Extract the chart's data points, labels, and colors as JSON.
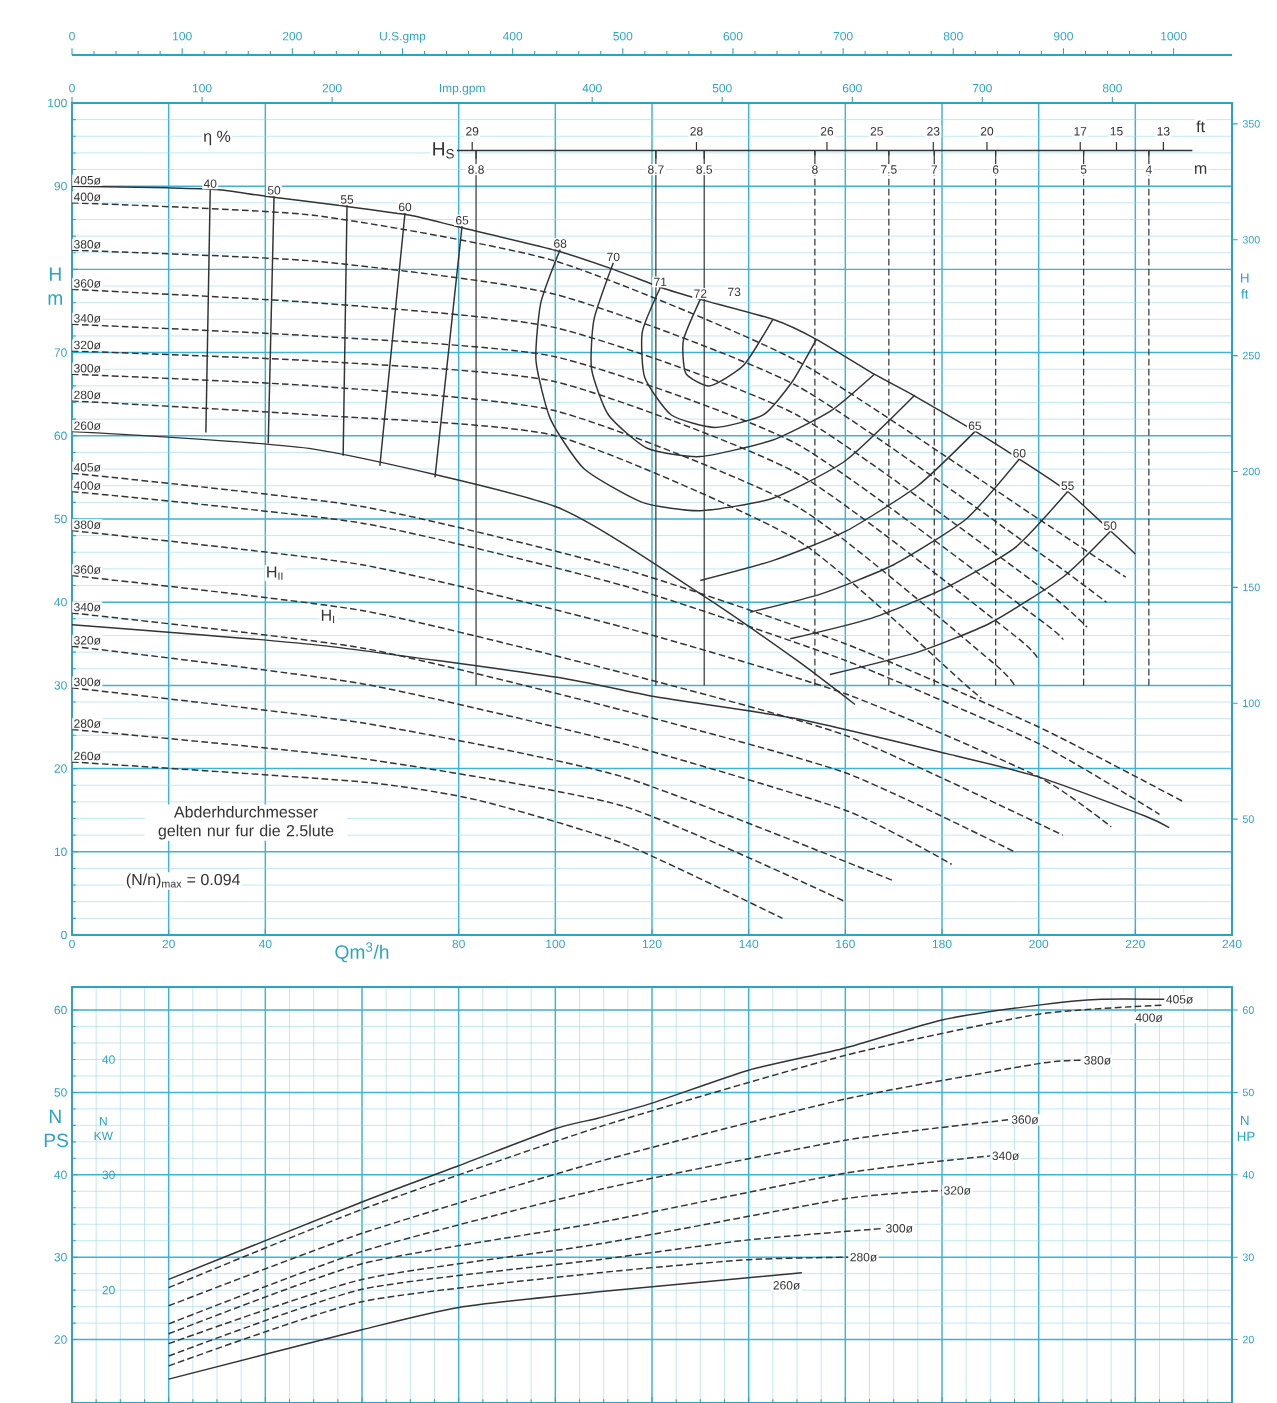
{
  "chart_data": [
    {
      "type": "other",
      "annotations": [
        "0",
        "100",
        "200",
        "U.S.gmp",
        "400",
        "500",
        "600",
        "700",
        "800",
        "900",
        "1000"
      ]
    },
    {
      "type": "line",
      "xlabel": "Qm$^{3}$/h",
      "ylabel": "H m",
      "y2label": "H ft",
      "x2label": "Imp.gpm",
      "xlim": [
        0,
        240
      ],
      "xticks": [
        0,
        20,
        40,
        80,
        100,
        120,
        140,
        160,
        180,
        200,
        220,
        240
      ],
      "ylim": [
        0,
        100
      ],
      "yticks": [
        0,
        10,
        20,
        30,
        40,
        50,
        60,
        70,
        {
          "value": 80,
          "label": null
        },
        90,
        100
      ],
      "y2lim": [
        0,
        359
      ],
      "y2ticks": [
        50,
        100,
        150,
        200,
        250,
        300,
        350
      ],
      "x2lim": [
        0,
        892
      ],
      "x2ticks": [
        0,
        100,
        200,
        400,
        500,
        600,
        700,
        800
      ],
      "grid": true,
      "series": [
        {
          "name": "405ø",
          "color": "#333333",
          "line_style": "solid",
          "x": [
            0,
            20,
            30,
            40,
            55,
            70,
            80,
            100,
            112,
            122,
            130,
            145,
            154,
            166,
            174,
            187,
            196,
            206,
            215,
            220
          ],
          "values": [
            90,
            89.8,
            89.6,
            88.8,
            87.7,
            86.5,
            85.1,
            82.3,
            80,
            77.8,
            76.4,
            74,
            71.6,
            67.4,
            64.9,
            60.5,
            57.2,
            53.3,
            48.5,
            45.8
          ]
        },
        {
          "name": "400ø",
          "color": "#333333",
          "line_style": "dashed",
          "x": [
            0,
            50,
            100,
            150,
            200,
            218
          ],
          "values": [
            88,
            86.5,
            81,
            69,
            50,
            43
          ]
        },
        {
          "name": "380ø",
          "color": "#333333",
          "line_style": "dashed",
          "x": [
            0,
            50,
            100,
            150,
            200,
            214
          ],
          "values": [
            82.3,
            81,
            77,
            66,
            46,
            40
          ]
        },
        {
          "name": "360ø",
          "color": "#333333",
          "line_style": "dashed",
          "x": [
            0,
            50,
            100,
            150,
            200,
            210
          ],
          "values": [
            77.6,
            76,
            73,
            62.5,
            42,
            37
          ]
        },
        {
          "name": "340ø",
          "color": "#333333",
          "line_style": "dashed",
          "x": [
            0,
            50,
            100,
            150,
            200,
            205
          ],
          "values": [
            73.4,
            72,
            69.5,
            59,
            38,
            35.5
          ]
        },
        {
          "name": "320ø",
          "color": "#333333",
          "line_style": "dashed",
          "x": [
            0,
            50,
            100,
            150,
            195,
            200
          ],
          "values": [
            70.2,
            69,
            66.5,
            55.5,
            36,
            33
          ]
        },
        {
          "name": "300ø",
          "color": "#333333",
          "line_style": "dashed",
          "x": [
            0,
            50,
            100,
            150,
            190,
            195
          ],
          "values": [
            67.4,
            66,
            63,
            51.5,
            33,
            30
          ]
        },
        {
          "name": "280ø",
          "color": "#333333",
          "line_style": "dashed",
          "x": [
            0,
            50,
            100,
            150,
            185,
            188
          ],
          "values": [
            64.2,
            62.5,
            60,
            47.5,
            30,
            28.5
          ]
        },
        {
          "name": "260ø",
          "color": "#333333",
          "line_style": "solid",
          "x": [
            0,
            50,
            100,
            130,
            150,
            162
          ],
          "values": [
            60.5,
            58.4,
            51.5,
            41,
            33,
            27.7
          ]
        },
        {
          "name": "405ø",
          "color": "#333333",
          "line_style": "dashed",
          "x": [
            0,
            60,
            114,
            160,
            200,
            230
          ],
          "values": [
            55.5,
            51.5,
            44,
            35,
            25,
            16
          ]
        },
        {
          "name": "400ø",
          "color": "#333333",
          "line_style": "dashed",
          "x": [
            0,
            60,
            114,
            160,
            200,
            225
          ],
          "values": [
            53.3,
            49.5,
            42,
            33,
            23,
            14.5
          ]
        },
        {
          "name": "380ø",
          "color": "#333333",
          "line_style": "dashed",
          "x": [
            0,
            60,
            114,
            160,
            200,
            215
          ],
          "values": [
            48.6,
            44.5,
            37,
            29,
            19,
            13
          ]
        },
        {
          "name": "360ø",
          "color": "#333333",
          "line_style": "dashed",
          "x": [
            0,
            60,
            114,
            160,
            205
          ],
          "values": [
            43.2,
            39,
            31.5,
            24,
            12
          ]
        },
        {
          "name": "340ø",
          "color": "#333333",
          "line_style": "dashed",
          "x": [
            0,
            60,
            114,
            160,
            195
          ],
          "values": [
            38.7,
            34.5,
            27,
            19.5,
            10
          ]
        },
        {
          "color": "#333333",
          "line_style": "solid",
          "x": [
            0,
            50,
            100,
            121,
            150,
            181,
            200,
            222,
            227
          ],
          "values": [
            37.3,
            34.9,
            31,
            28.6,
            26,
            21.8,
            19,
            14.3,
            12.9
          ]
        },
        {
          "name": "320ø",
          "color": "#333333",
          "line_style": "dashed",
          "x": [
            0,
            60,
            114,
            160,
            182
          ],
          "values": [
            34.7,
            30.2,
            23,
            15,
            8.5
          ]
        },
        {
          "name": "300ø",
          "color": "#333333",
          "line_style": "dashed",
          "x": [
            0,
            60,
            114,
            170
          ],
          "values": [
            29.7,
            25.5,
            19,
            6.5
          ]
        },
        {
          "name": "280ø",
          "color": "#333333",
          "line_style": "dashed",
          "x": [
            0,
            60,
            114,
            160
          ],
          "values": [
            24.7,
            21.2,
            15.5,
            4
          ]
        },
        {
          "name": "260ø",
          "color": "#333333",
          "line_style": "dashed",
          "x": [
            0,
            60,
            84,
            114,
            147
          ],
          "values": [
            20.8,
            18.4,
            16.2,
            11,
            2
          ]
        },
        {
          "name": "40",
          "color": "#333333",
          "line_style": "solid",
          "x": [
            28.6,
            27.7
          ],
          "values": [
            89.6,
            60.4
          ]
        },
        {
          "name": "50",
          "color": "#333333",
          "line_style": "solid",
          "x": [
            41.8,
            40.6
          ],
          "values": [
            88.8,
            59.1
          ]
        },
        {
          "name": "55",
          "color": "#333333",
          "line_style": "solid",
          "x": [
            56.9,
            56.1
          ],
          "values": [
            87.7,
            57.6
          ]
        },
        {
          "name": "60",
          "color": "#333333",
          "line_style": "solid",
          "x": [
            68.9,
            63.7
          ],
          "values": [
            86.8,
            56.4
          ]
        },
        {
          "name": "65",
          "color": "#333333",
          "line_style": "solid",
          "x": [
            80.7,
            75.1
          ],
          "values": [
            85.2,
            55
          ]
        },
        {
          "name": "68",
          "color": "#333333",
          "line_style": "solid",
          "x": [
            101,
            97,
            96,
            99,
            106,
            118,
            130,
            145,
            160,
            174.4
          ],
          "values": [
            82.4,
            76,
            69,
            62,
            56,
            52,
            51,
            52.5,
            57,
            64.9
          ]
        },
        {
          "name": "70",
          "color": "#333333",
          "line_style": "solid",
          "x": [
            112,
            108,
            107.5,
            111,
            119,
            130,
            145,
            157,
            166
          ],
          "values": [
            80.8,
            74,
            68,
            62.5,
            58.5,
            57.5,
            59.5,
            63,
            67.4
          ]
        },
        {
          "name": "71",
          "color": "#333333",
          "line_style": "solid",
          "x": [
            121.7,
            118,
            118.5,
            124,
            133,
            143,
            149,
            154
          ],
          "values": [
            77.8,
            72.5,
            67,
            62.5,
            61,
            62.5,
            66.5,
            71.6
          ]
        },
        {
          "name": "72",
          "color": "#333333",
          "line_style": "solid",
          "x": [
            130,
            126.5,
            127,
            132,
            139,
            145
          ],
          "values": [
            76.4,
            71.5,
            67.5,
            66,
            68.5,
            74
          ]
        },
        {
          "name": "65",
          "color": "#333333",
          "line_style": "solid",
          "x": [
            186.8,
            175,
            160,
            145,
            130
          ],
          "values": [
            60.5,
            54,
            48.5,
            45,
            42.6
          ]
        },
        {
          "name": "60",
          "color": "#333333",
          "line_style": "solid",
          "x": [
            196,
            185,
            170,
            155,
            140.3
          ],
          "values": [
            57.2,
            50,
            44.5,
            41,
            38.8
          ]
        },
        {
          "name": "55",
          "color": "#333333",
          "line_style": "solid",
          "x": [
            206,
            195,
            180,
            165,
            148.6
          ],
          "values": [
            53.3,
            46.5,
            41.5,
            38,
            35.6
          ]
        },
        {
          "name": "50",
          "color": "#333333",
          "line_style": "solid",
          "x": [
            214.8,
            205,
            190,
            175,
            156.8
          ],
          "values": [
            48.5,
            43,
            37.5,
            34,
            31.3
          ]
        }
      ],
      "ref_lines": [
        {
          "axis": "y",
          "value": 94.3,
          "label": "H$_{S}$",
          "color": "#333333",
          "line_style": "solid"
        },
        {
          "axis": "x",
          "value": 83.6,
          "color": "#333333",
          "line_style": "solid"
        },
        {
          "axis": "x",
          "value": 120.8,
          "color": "#333333",
          "line_style": "solid"
        },
        {
          "axis": "x",
          "value": 130.8,
          "color": "#333333",
          "line_style": "solid"
        },
        {
          "axis": "x",
          "value": 153.7,
          "color": "#333333",
          "line_style": "dashed"
        },
        {
          "axis": "x",
          "value": 169,
          "color": "#333333",
          "line_style": "dashed"
        },
        {
          "axis": "x",
          "value": 178.4,
          "color": "#333333",
          "line_style": "dashed"
        },
        {
          "axis": "x",
          "value": 191.1,
          "color": "#333333",
          "line_style": "dashed"
        },
        {
          "axis": "x",
          "value": 209.3,
          "color": "#333333",
          "line_style": "dashed"
        },
        {
          "axis": "x",
          "value": 222.8,
          "color": "#333333",
          "line_style": "dashed"
        }
      ],
      "annotations": [
        "η %",
        "H$_{II}$",
        "H$_{I}$",
        "Abderhdurchmesser gelten nur fur die 2.5lute",
        "(N/n)$_{max}$ = 0.094",
        "ft",
        "m",
        "29",
        "28",
        "26",
        "25",
        "23",
        "20",
        "17",
        "15",
        "13",
        "8.8",
        "8.7",
        "8.5",
        "8",
        "7.5",
        "7",
        "6",
        "5",
        "4",
        {
          "text": "73",
          "x": 137,
          "y": 77.3
        }
      ]
    },
    {
      "type": "line",
      "ylabel": "N PS",
      "y2label": "N HP",
      "y3label": "N KW",
      "xlim": [
        0,
        240
      ],
      "xticks": [
        0,
        20,
        40,
        60,
        80,
        100,
        120,
        140,
        160,
        180,
        200,
        220,
        240
      ],
      "tick_labels": "y",
      "ylim": [
        12.3,
        62.8
      ],
      "yticks": [
        20,
        30,
        40,
        50,
        60
      ],
      "y2lim": [
        12.3,
        62.8
      ],
      "y2ticks": [
        20,
        30,
        40,
        50,
        60
      ],
      "y3lim": [
        10.2,
        46.3
      ],
      "y3ticks": [
        20,
        30,
        40
      ],
      "grid": true,
      "series": [
        {
          "name": "405ø",
          "color": "#333333",
          "line_style": "solid",
          "x": [
            20,
            60,
            80,
            100,
            109,
            120,
            140,
            160,
            180,
            200,
            213,
            226
          ],
          "values": [
            27.3,
            36.7,
            41.1,
            45.6,
            46.9,
            48.7,
            52.7,
            55.4,
            58.8,
            60.6,
            61.3,
            61.3
          ]
        },
        {
          "name": "400ø",
          "color": "#333333",
          "line_style": "dashed",
          "x": [
            20,
            60,
            109,
            160,
            200,
            226
          ],
          "values": [
            26.3,
            35.8,
            45.8,
            54.5,
            59.5,
            60.6
          ]
        },
        {
          "name": "380ø",
          "color": "#333333",
          "line_style": "dashed",
          "x": [
            20,
            60,
            109,
            160,
            200,
            209
          ],
          "values": [
            24.1,
            32.9,
            41.6,
            49.2,
            53.5,
            53.9
          ]
        },
        {
          "name": "360ø",
          "color": "#333333",
          "line_style": "dashed",
          "x": [
            20,
            60,
            109,
            160,
            194
          ],
          "values": [
            21.9,
            30.7,
            38.2,
            44.2,
            46.7
          ]
        },
        {
          "name": "340ø",
          "color": "#333333",
          "line_style": "dashed",
          "x": [
            20,
            60,
            109,
            160,
            190
          ],
          "values": [
            20.7,
            29.2,
            34.2,
            40.2,
            42.3
          ]
        },
        {
          "name": "320ø",
          "color": "#333333",
          "line_style": "dashed",
          "x": [
            20,
            60,
            109,
            160,
            180
          ],
          "values": [
            19.5,
            27.3,
            31.6,
            37.1,
            38.1
          ]
        },
        {
          "name": "300ø",
          "color": "#333333",
          "line_style": "dashed",
          "x": [
            20,
            60,
            109,
            140,
            168
          ],
          "values": [
            18,
            26.1,
            29.7,
            32.1,
            33.5
          ]
        },
        {
          "name": "280ø",
          "color": "#333333",
          "line_style": "dashed",
          "x": [
            20,
            60,
            109,
            140,
            160.6
          ],
          "values": [
            16.8,
            24.6,
            28.1,
            29.7,
            30
          ]
        },
        {
          "name": "260ø",
          "color": "#333333",
          "line_style": "solid",
          "x": [
            20,
            60,
            80,
            109,
            151
          ],
          "values": [
            15.2,
            21.2,
            23.9,
            25.8,
            28.1
          ]
        }
      ]
    }
  ]
}
